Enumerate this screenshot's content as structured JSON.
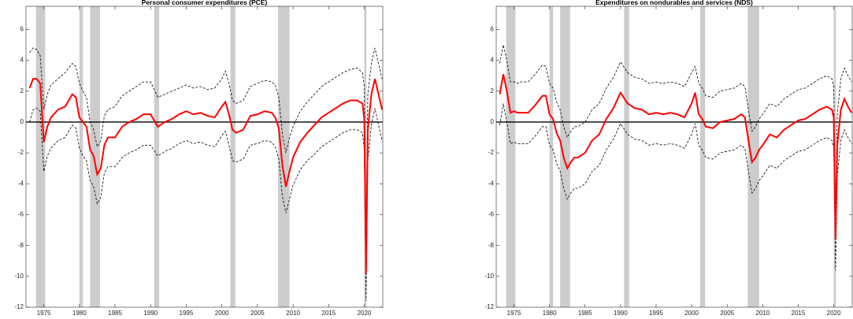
{
  "chart_data": [
    {
      "type": "line",
      "title": "Personal consumer expenditures (PCE)",
      "x": [
        1973,
        1973.5,
        1974,
        1974.5,
        1975,
        1975.5,
        1976,
        1977,
        1978,
        1979,
        1979.5,
        1980,
        1980.5,
        1981,
        1981.5,
        1982,
        1982.5,
        1983,
        1983.5,
        1984,
        1985,
        1986,
        1987,
        1988,
        1989,
        1990,
        1991,
        1992,
        1993,
        1994,
        1995,
        1996,
        1997,
        1998,
        1999,
        2000,
        2000.5,
        2001,
        2001.5,
        2002,
        2003,
        2004,
        2005,
        2006,
        2007,
        2007.5,
        2008,
        2008.5,
        2009,
        2009.5,
        2010,
        2011,
        2012,
        2013,
        2014,
        2015,
        2016,
        2017,
        2018,
        2019,
        2019.75,
        2020,
        2020.25,
        2020.5,
        2021,
        2021.5,
        2022,
        2022.5
      ],
      "xlim": [
        1972.5,
        2022.6
      ],
      "xticks": [
        1975,
        1980,
        1985,
        1990,
        1995,
        2000,
        2005,
        2010,
        2015,
        2020
      ],
      "ylim": [
        -12,
        7.5
      ],
      "yticks": [
        -12,
        -10,
        -8,
        -6,
        -4,
        -2,
        0,
        2,
        4,
        6
      ],
      "zero_line": true,
      "band_color": "#cccccc",
      "recessions": [
        [
          1973.9,
          1975.2
        ],
        [
          1980.0,
          1980.5
        ],
        [
          1981.5,
          1982.9
        ],
        [
          1990.5,
          1991.2
        ],
        [
          2001.2,
          2001.9
        ],
        [
          2007.9,
          2009.5
        ],
        [
          2020.0,
          2020.3
        ]
      ],
      "series": [
        {
          "color": "#000000",
          "dash": true,
          "values": [
            0.0,
            0.8,
            0.9,
            0.7,
            -3.2,
            -2.2,
            -1.7,
            -1.2,
            -1.0,
            -0.2,
            -0.4,
            -1.7,
            -2.2,
            -2.5,
            -3.8,
            -4.2,
            -5.3,
            -4.9,
            -3.3,
            -2.9,
            -2.9,
            -2.3,
            -2.0,
            -1.8,
            -1.5,
            -1.5,
            -2.2,
            -1.9,
            -1.7,
            -1.4,
            -1.2,
            -1.4,
            -1.3,
            -1.5,
            -1.6,
            -0.9,
            -0.6,
            -1.5,
            -2.5,
            -2.6,
            -2.4,
            -1.5,
            -1.4,
            -1.2,
            -1.3,
            -1.6,
            -2.4,
            -4.8,
            -5.9,
            -5.0,
            -4.1,
            -3.1,
            -2.5,
            -2.1,
            -1.6,
            -1.3,
            -1.0,
            -0.7,
            -0.5,
            -0.5,
            -0.7,
            -1.8,
            -11.6,
            -2.5,
            -0.2,
            0.9,
            -0.2,
            -1.2
          ]
        },
        {
          "color": "#000000",
          "dash": true,
          "values": [
            4.5,
            4.8,
            4.7,
            4.3,
            0.8,
            1.8,
            2.4,
            2.8,
            3.2,
            3.8,
            3.6,
            2.5,
            2.0,
            1.6,
            0.0,
            -0.5,
            -1.6,
            -1.2,
            0.4,
            0.8,
            1.0,
            1.7,
            2.0,
            2.3,
            2.6,
            2.6,
            1.6,
            1.8,
            2.0,
            2.2,
            2.4,
            2.2,
            2.3,
            2.1,
            2.2,
            2.8,
            3.3,
            2.5,
            1.4,
            1.2,
            1.4,
            2.3,
            2.5,
            2.7,
            2.6,
            2.4,
            1.6,
            -0.8,
            -2.0,
            -1.0,
            -0.3,
            0.7,
            1.3,
            1.8,
            2.3,
            2.6,
            2.9,
            3.2,
            3.4,
            3.5,
            3.2,
            2.3,
            -7.5,
            1.8,
            3.8,
            4.8,
            3.8,
            2.8
          ]
        },
        {
          "color": "#ff0000",
          "dash": false,
          "values": [
            2.2,
            2.8,
            2.8,
            2.5,
            -1.3,
            -0.3,
            0.3,
            0.8,
            1.0,
            1.8,
            1.6,
            0.3,
            0.0,
            -0.3,
            -1.8,
            -2.2,
            -3.4,
            -3.0,
            -1.5,
            -1.0,
            -1.0,
            -0.3,
            0.0,
            0.2,
            0.5,
            0.5,
            -0.3,
            0.0,
            0.2,
            0.5,
            0.7,
            0.5,
            0.6,
            0.4,
            0.3,
            1.0,
            1.3,
            0.5,
            -0.5,
            -0.7,
            -0.5,
            0.4,
            0.5,
            0.7,
            0.6,
            0.3,
            -0.4,
            -2.8,
            -4.2,
            -3.2,
            -2.3,
            -1.3,
            -0.7,
            -0.2,
            0.3,
            0.6,
            0.9,
            1.2,
            1.4,
            1.4,
            1.2,
            0.2,
            -9.8,
            -0.5,
            1.8,
            2.8,
            1.8,
            0.8
          ]
        }
      ]
    },
    {
      "type": "line",
      "title": "Expenditures on nondurables and services (NDS)",
      "x": [
        1973,
        1973.5,
        1974,
        1974.5,
        1975,
        1975.5,
        1976,
        1977,
        1978,
        1979,
        1979.5,
        1980,
        1980.5,
        1981,
        1981.5,
        1982,
        1982.5,
        1983,
        1983.5,
        1984,
        1985,
        1986,
        1987,
        1988,
        1989,
        1990,
        1991,
        1992,
        1993,
        1994,
        1995,
        1996,
        1997,
        1998,
        1999,
        2000,
        2000.5,
        2001,
        2001.5,
        2002,
        2003,
        2004,
        2005,
        2006,
        2007,
        2007.5,
        2008,
        2008.5,
        2009,
        2009.5,
        2010,
        2011,
        2012,
        2013,
        2014,
        2015,
        2016,
        2017,
        2018,
        2019,
        2019.75,
        2020,
        2020.25,
        2020.5,
        2021,
        2021.5,
        2022,
        2022.5
      ],
      "xlim": [
        1972.5,
        2022.6
      ],
      "xticks": [
        1975,
        1980,
        1985,
        1990,
        1995,
        2000,
        2005,
        2010,
        2015,
        2020
      ],
      "ylim": [
        -12,
        7.5
      ],
      "yticks": [
        -12,
        -10,
        -8,
        -6,
        -4,
        -2,
        0,
        2,
        4,
        6
      ],
      "zero_line": true,
      "band_color": "#cccccc",
      "recessions": [
        [
          1973.9,
          1975.2
        ],
        [
          1980.0,
          1980.5
        ],
        [
          1981.5,
          1982.9
        ],
        [
          1990.5,
          1991.2
        ],
        [
          2001.2,
          2001.9
        ],
        [
          2007.9,
          2009.5
        ],
        [
          2020.0,
          2020.3
        ]
      ],
      "series": [
        {
          "color": "#000000",
          "dash": true,
          "values": [
            -0.2,
            1.2,
            0.0,
            -1.4,
            -1.3,
            -1.4,
            -1.4,
            -1.4,
            -0.9,
            -0.3,
            -0.3,
            -1.5,
            -1.8,
            -2.7,
            -3.2,
            -4.3,
            -5.0,
            -4.6,
            -4.3,
            -4.3,
            -4.0,
            -3.2,
            -2.8,
            -1.8,
            -1.1,
            -0.1,
            -0.8,
            -1.1,
            -1.2,
            -1.5,
            -1.4,
            -1.5,
            -1.4,
            -1.5,
            -1.7,
            -0.8,
            -0.1,
            -1.5,
            -1.8,
            -2.3,
            -2.4,
            -2.0,
            -1.9,
            -1.8,
            -1.5,
            -1.7,
            -3.2,
            -4.6,
            -4.3,
            -3.8,
            -3.5,
            -2.8,
            -3.0,
            -2.5,
            -2.2,
            -1.9,
            -1.8,
            -1.5,
            -1.2,
            -1.0,
            -1.2,
            -1.7,
            -9.6,
            -3.5,
            -1.2,
            -0.5,
            -1.0,
            -1.4
          ]
        },
        {
          "color": "#000000",
          "dash": true,
          "values": [
            3.8,
            5.0,
            4.0,
            2.6,
            2.6,
            2.5,
            2.6,
            2.6,
            3.1,
            3.7,
            3.6,
            2.5,
            2.2,
            1.3,
            0.8,
            -0.3,
            -1.0,
            -0.6,
            -0.3,
            -0.3,
            0.0,
            0.8,
            1.2,
            2.2,
            2.9,
            3.9,
            3.2,
            2.9,
            2.8,
            2.5,
            2.6,
            2.5,
            2.6,
            2.5,
            2.3,
            3.2,
            3.6,
            2.5,
            2.2,
            1.7,
            1.6,
            2.0,
            2.1,
            2.2,
            2.5,
            2.3,
            0.8,
            -0.6,
            -0.3,
            0.2,
            0.5,
            1.2,
            1.0,
            1.5,
            1.8,
            2.1,
            2.2,
            2.5,
            2.8,
            3.0,
            2.8,
            2.3,
            -6.0,
            0.5,
            2.8,
            3.5,
            3.0,
            2.6
          ]
        },
        {
          "color": "#ff0000",
          "dash": false,
          "values": [
            1.8,
            3.1,
            2.0,
            0.6,
            0.7,
            0.6,
            0.6,
            0.6,
            1.1,
            1.7,
            1.7,
            0.5,
            0.2,
            -0.7,
            -1.2,
            -2.3,
            -3.0,
            -2.6,
            -2.3,
            -2.3,
            -2.0,
            -1.2,
            -0.8,
            0.2,
            0.9,
            1.9,
            1.2,
            0.9,
            0.8,
            0.5,
            0.6,
            0.5,
            0.6,
            0.5,
            0.3,
            1.2,
            1.9,
            0.5,
            0.2,
            -0.3,
            -0.4,
            0,
            0.1,
            0.2,
            0.5,
            0.3,
            -1.2,
            -2.6,
            -2.3,
            -1.8,
            -1.5,
            -0.8,
            -1.0,
            -0.5,
            -0.2,
            0.1,
            0.2,
            0.5,
            0.8,
            1.0,
            0.8,
            0.3,
            -7.6,
            -1.5,
            0.8,
            1.5,
            1.0,
            0.6
          ]
        }
      ]
    }
  ]
}
